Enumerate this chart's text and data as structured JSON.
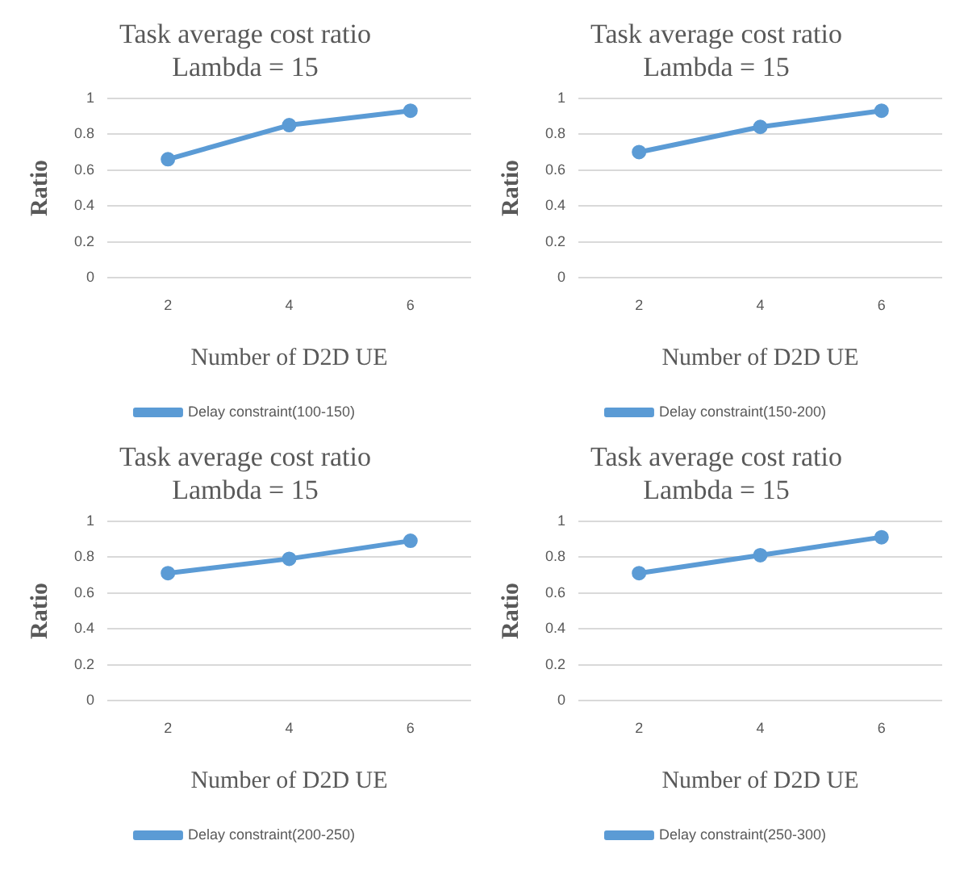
{
  "chart_data": [
    {
      "type": "line",
      "title": "Task average cost ratio",
      "subtitle": "Lambda = 15",
      "xlabel": "Number of D2D UE",
      "ylabel": "Ratio",
      "categories": [
        "2",
        "4",
        "6"
      ],
      "series": [
        {
          "name": "Delay constraint(100-150)",
          "color": "#5b9bd5",
          "values": [
            0.66,
            0.85,
            0.93
          ]
        }
      ],
      "ylim": [
        0,
        1
      ],
      "yticks": [
        0,
        0.2,
        0.4,
        0.6,
        0.8,
        1
      ],
      "grid": "y",
      "legend": "bottom",
      "marker": "circle",
      "line_style": "solid"
    },
    {
      "type": "line",
      "title": "Task average cost ratio",
      "subtitle": "Lambda = 15",
      "xlabel": "Number of D2D UE",
      "ylabel": "Ratio",
      "categories": [
        "2",
        "4",
        "6"
      ],
      "series": [
        {
          "name": "Delay constraint(150-200)",
          "color": "#5b9bd5",
          "values": [
            0.7,
            0.84,
            0.93
          ]
        }
      ],
      "ylim": [
        0,
        1
      ],
      "yticks": [
        0,
        0.2,
        0.4,
        0.6,
        0.8,
        1
      ],
      "grid": "y",
      "legend": "bottom",
      "marker": "circle",
      "line_style": "solid"
    },
    {
      "type": "line",
      "title": "Task average cost ratio",
      "subtitle": "Lambda = 15",
      "xlabel": "Number of D2D UE",
      "ylabel": "Ratio",
      "categories": [
        "2",
        "4",
        "6"
      ],
      "series": [
        {
          "name": "Delay constraint(200-250)",
          "color": "#5b9bd5",
          "values": [
            0.71,
            0.79,
            0.89
          ]
        }
      ],
      "ylim": [
        0,
        1
      ],
      "yticks": [
        0,
        0.2,
        0.4,
        0.6,
        0.8,
        1
      ],
      "grid": "y",
      "legend": "bottom",
      "marker": "circle",
      "line_style": "solid"
    },
    {
      "type": "line",
      "title": "Task average cost ratio",
      "subtitle": "Lambda = 15",
      "xlabel": "Number of D2D UE",
      "ylabel": "Ratio",
      "categories": [
        "2",
        "4",
        "6"
      ],
      "series": [
        {
          "name": "Delay constraint(250-300)",
          "color": "#5b9bd5",
          "values": [
            0.71,
            0.81,
            0.91
          ]
        }
      ],
      "ylim": [
        0,
        1
      ],
      "yticks": [
        0,
        0.2,
        0.4,
        0.6,
        0.8,
        1
      ],
      "grid": "y",
      "legend": "bottom",
      "marker": "circle",
      "line_style": "solid"
    }
  ]
}
